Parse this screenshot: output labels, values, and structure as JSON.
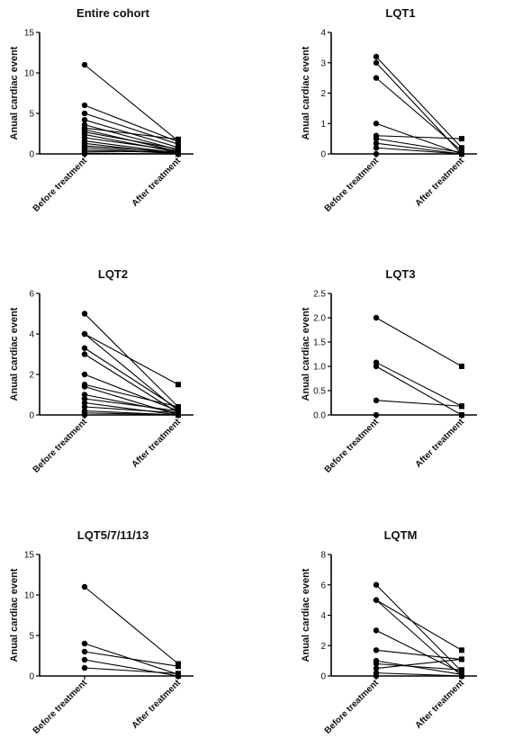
{
  "chart_data": [
    {
      "type": "line",
      "title": "Entire cohort",
      "ylabel": "Anual cardiac event",
      "categories": [
        "Before treatment",
        "After treatment"
      ],
      "ylim": [
        0,
        15
      ],
      "yticks": [
        0,
        5,
        10,
        15
      ],
      "before_values": [
        11,
        6,
        5,
        4.2,
        3.6,
        3.2,
        3,
        2.7,
        2.4,
        2,
        1.6,
        1.3,
        1,
        0.8,
        0.5,
        0.3,
        0.1,
        0
      ],
      "after_values": [
        1.6,
        1.5,
        1.2,
        0.8,
        0.5,
        1.8,
        0.3,
        0.6,
        0.2,
        0.4,
        0.1,
        0,
        0.2,
        0,
        0.1,
        0.3,
        0,
        0
      ]
    },
    {
      "type": "line",
      "title": "LQT1",
      "ylabel": "Anual cardiac event",
      "categories": [
        "Before treatment",
        "After treatment"
      ],
      "ylim": [
        0,
        4
      ],
      "yticks": [
        0,
        1,
        2,
        3,
        4
      ],
      "before_values": [
        3.2,
        3,
        2.5,
        1,
        0.6,
        0.5,
        0.35,
        0.2,
        0
      ],
      "after_values": [
        0.2,
        0,
        0.1,
        0,
        0.5,
        0.05,
        0,
        0,
        0
      ]
    },
    {
      "type": "line",
      "title": "LQT2",
      "ylabel": "Anual cardiac event",
      "categories": [
        "Before treatment",
        "After treatment"
      ],
      "ylim": [
        0,
        6
      ],
      "yticks": [
        0,
        2,
        4,
        6
      ],
      "before_values": [
        5,
        4,
        4,
        3.3,
        3,
        2,
        1.5,
        1.4,
        1,
        0.8,
        0.6,
        0.4,
        0.2,
        0.1,
        0
      ],
      "after_values": [
        0.4,
        1.5,
        0.2,
        0.3,
        0.1,
        0.2,
        0.4,
        0,
        0.1,
        0.2,
        0,
        0.1,
        0,
        0,
        0
      ]
    },
    {
      "type": "line",
      "title": "LQT3",
      "ylabel": "Anual cardiac event",
      "categories": [
        "Before treatment",
        "After treatment"
      ],
      "ylim": [
        0,
        2.5
      ],
      "yticks": [
        0.0,
        0.5,
        1.0,
        1.5,
        2.0,
        2.5
      ],
      "before_values": [
        2.0,
        1.08,
        1.0,
        0.3,
        0
      ],
      "after_values": [
        1.0,
        0.18,
        0,
        0.18,
        0
      ]
    },
    {
      "type": "line",
      "title": "LQT5/7/11/13",
      "ylabel": "Anual cardiac event",
      "categories": [
        "Before treatment",
        "After treatment"
      ],
      "ylim": [
        0,
        15
      ],
      "yticks": [
        0,
        5,
        10,
        15
      ],
      "before_values": [
        11,
        4,
        3,
        2,
        1
      ],
      "after_values": [
        1.5,
        0.2,
        1.2,
        0,
        0.3
      ]
    },
    {
      "type": "line",
      "title": "LQTM",
      "ylabel": "Anual cardiac event",
      "categories": [
        "Before treatment",
        "After treatment"
      ],
      "ylim": [
        0,
        8
      ],
      "yticks": [
        0,
        2,
        4,
        6,
        8
      ],
      "before_values": [
        6,
        5,
        5,
        3,
        1.7,
        1,
        0.8,
        0.5,
        0.2,
        0
      ],
      "after_values": [
        0.3,
        0,
        1.7,
        0.2,
        1.1,
        0.1,
        0.4,
        1.1,
        0,
        0
      ]
    }
  ]
}
